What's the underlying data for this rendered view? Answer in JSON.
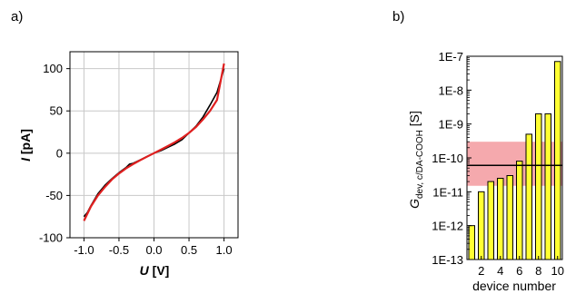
{
  "chart_data": [
    {
      "panel_label": "a)",
      "type": "line",
      "xlabel": {
        "symbol": "U",
        "unit": " [V]"
      },
      "ylabel": {
        "symbol": "I",
        "unit": " [pA]"
      },
      "xlim": [
        -1.2,
        1.2
      ],
      "ylim": [
        -100,
        120
      ],
      "xticks": [
        -1.0,
        -0.5,
        0.0,
        0.5,
        1.0
      ],
      "xtick_labels": [
        "-1.0",
        "-0.5",
        "0.0",
        "0.5",
        "1.0"
      ],
      "yticks": [
        -100,
        -50,
        0,
        50,
        100
      ],
      "ytick_labels": [
        "-100",
        "-50",
        "0",
        "50",
        "100"
      ],
      "grid": true,
      "series": [
        {
          "color": "#000000",
          "x": [
            -1.0,
            -0.95,
            -0.9,
            -0.8,
            -0.7,
            -0.6,
            -0.5,
            -0.4,
            -0.35,
            -0.3,
            -0.2,
            -0.1,
            0.0,
            0.1,
            0.2,
            0.3,
            0.4,
            0.5,
            0.6,
            0.7,
            0.8,
            0.9,
            1.0
          ],
          "y": [
            -75,
            -70,
            -62,
            -48,
            -38,
            -30,
            -23,
            -17,
            -13,
            -12,
            -8,
            -4,
            0,
            3,
            7,
            11,
            16,
            24,
            32,
            43,
            57,
            72,
            100
          ]
        },
        {
          "color": "#e02020",
          "x": [
            -1.0,
            -0.9,
            -0.8,
            -0.7,
            -0.6,
            -0.5,
            -0.4,
            -0.3,
            -0.2,
            -0.1,
            0.0,
            0.1,
            0.2,
            0.3,
            0.4,
            0.5,
            0.6,
            0.7,
            0.8,
            0.9,
            1.0
          ],
          "y": [
            -80,
            -63,
            -50,
            -40,
            -31,
            -24,
            -18,
            -13,
            -8.5,
            -4.2,
            0,
            4.2,
            8.5,
            13,
            18,
            24,
            31,
            40,
            50,
            63,
            106
          ]
        }
      ]
    },
    {
      "panel_label": "b)",
      "type": "bar",
      "xlabel": "device number",
      "ylabel": {
        "symbol": "G",
        "subscript": "dev, c/DA-COOH",
        "unit": " [S]"
      },
      "yscale": "log",
      "ylim": [
        1e-13,
        1e-07
      ],
      "yticks": [
        1e-13,
        1e-12,
        1e-11,
        1e-10,
        1e-09,
        1e-08,
        1e-07
      ],
      "ytick_labels": [
        "1E-13",
        "1E-12",
        "1E-11",
        "1E-10",
        "1E-9",
        "1E-8",
        "1E-7"
      ],
      "xlim": [
        0.5,
        10.5
      ],
      "xticks": [
        2,
        4,
        6,
        8,
        10
      ],
      "xtick_labels": [
        "2",
        "4",
        "6",
        "8",
        "10"
      ],
      "categories": [
        1,
        2,
        3,
        4,
        5,
        6,
        7,
        8,
        9,
        10
      ],
      "values": [
        1e-12,
        1e-11,
        2e-11,
        2.5e-11,
        3e-11,
        8e-11,
        5e-10,
        2e-09,
        2e-09,
        7e-08
      ],
      "bar_color": "#ffff33",
      "mean_line": 6e-11,
      "shaded_band": [
        1.5e-11,
        3e-10
      ],
      "band_color": "#f4a0a4"
    }
  ]
}
